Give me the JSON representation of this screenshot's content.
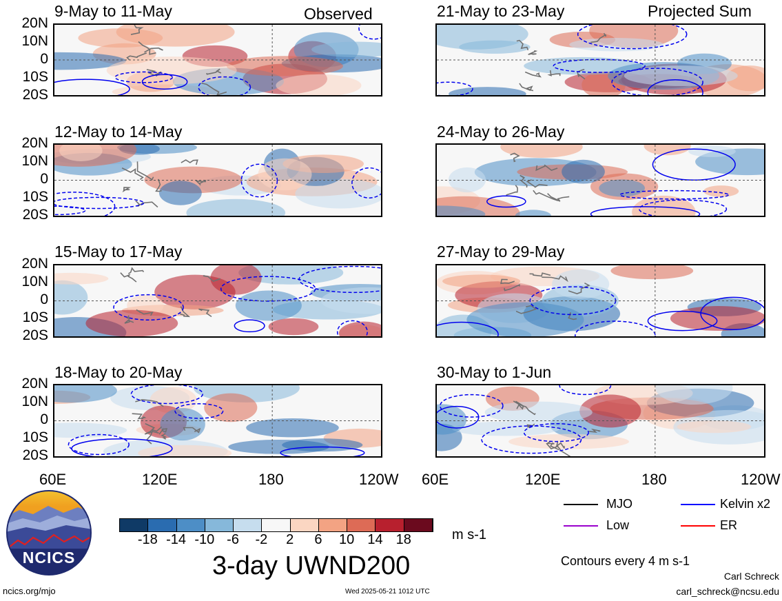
{
  "panels": {
    "p0": {
      "title": "9-May to 11-May"
    },
    "p1": {
      "title": "12-May to 14-May"
    },
    "p2": {
      "title": "15-May to 17-May"
    },
    "p3": {
      "title": "18-May to 20-May"
    },
    "p4": {
      "title": "21-May to 23-May"
    },
    "p5": {
      "title": "24-May to 26-May"
    },
    "p6": {
      "title": "27-May to 29-May"
    },
    "p7": {
      "title": "30-May to 1-Jun"
    }
  },
  "column_labels": {
    "observed": "Observed",
    "projected": "Projected Sum"
  },
  "y_ticks": [
    "20N",
    "10N",
    "0",
    "10S",
    "20S"
  ],
  "x_ticks": [
    "60E",
    "120E",
    "180",
    "120W"
  ],
  "colorbar": {
    "ticks": [
      "-18",
      "-14",
      "-10",
      "-6",
      "-2",
      "2",
      "6",
      "10",
      "14",
      "18"
    ],
    "colors": [
      "#0f3a66",
      "#2a6cb0",
      "#4d8ec6",
      "#86b8da",
      "#c6ddee",
      "#f7f7f7",
      "#fbd6c2",
      "#f3a383",
      "#dd6b56",
      "#b8202e",
      "#6b0a1e"
    ],
    "units": "m s-1"
  },
  "title": "3-day UWND200",
  "legend": {
    "items": [
      {
        "label": "MJO",
        "color": "#000000"
      },
      {
        "label": "Kelvin x2",
        "color": "#0000ff"
      },
      {
        "label": "Low",
        "color": "#9900cc"
      },
      {
        "label": "ER",
        "color": "#ff0000"
      }
    ],
    "contour_note": "Contours every 4 m s-1"
  },
  "logo": {
    "text": "NCICS"
  },
  "footer": {
    "url": "ncics.org/mjo",
    "timestamp": "Wed 2025-05-21 1012 UTC",
    "author": "Carl Schreck",
    "email": "carl_schreck@ncsu.edu"
  }
}
